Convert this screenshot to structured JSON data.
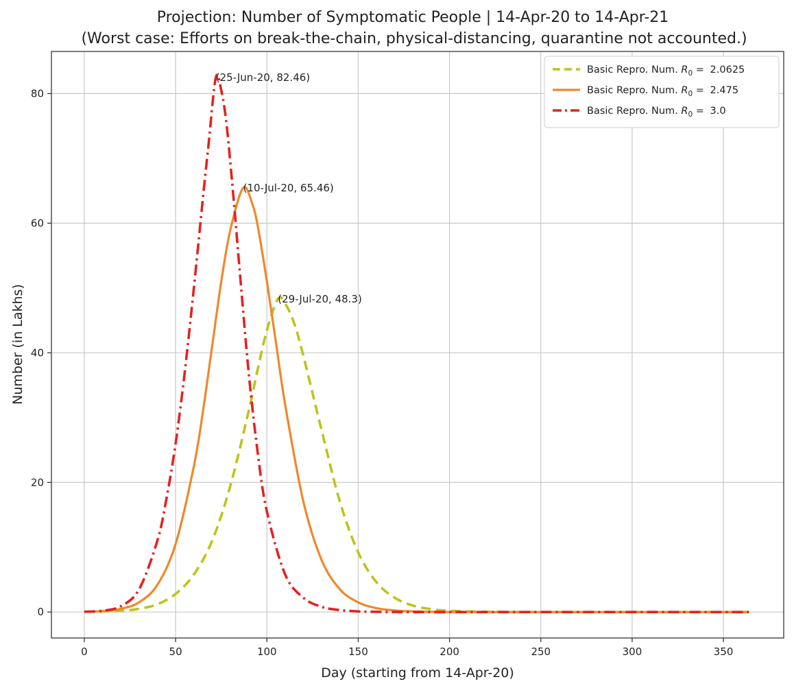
{
  "chart_data": {
    "type": "line",
    "title": "Projection: Number of Symptomatic People | 14-Apr-20 to 14-Apr-21",
    "subtitle": "(Worst case: Efforts on break-the-chain, physical-distancing, quarantine not accounted.)",
    "xlabel": "Day (starting from 14-Apr-20)",
    "ylabel": "Number (in Lakhs)",
    "xlim": [
      -18,
      383
    ],
    "ylim": [
      -4,
      86.5
    ],
    "xticks": [
      0,
      50,
      100,
      150,
      200,
      250,
      300,
      350
    ],
    "yticks": [
      0,
      20,
      40,
      60,
      80
    ],
    "grid": true,
    "legend_position": "top-right",
    "series": [
      {
        "name": "Basic Repro. Num. R0 = 2.0625",
        "legend_prefix": "Basic Repro. Num.",
        "legend_value": "2.0625",
        "color": "#bcc419",
        "style": "dashed",
        "x": [
          0,
          10,
          20,
          30,
          40,
          50,
          60,
          70,
          80,
          90,
          95,
          100,
          106,
          110,
          115,
          120,
          130,
          140,
          150,
          160,
          170,
          180,
          190,
          200,
          220,
          250,
          300,
          364
        ],
        "y": [
          0.05,
          0.1,
          0.2,
          0.5,
          1.2,
          2.8,
          5.8,
          11.0,
          19.5,
          31.0,
          37.5,
          43.5,
          48.3,
          47.6,
          44.5,
          39.5,
          28.0,
          17.0,
          9.2,
          4.6,
          2.2,
          1.0,
          0.45,
          0.2,
          0.05,
          0.0,
          0.0,
          0.0
        ]
      },
      {
        "name": "Basic Repro. Num. R0 = 2.475",
        "legend_prefix": "Basic Repro. Num.",
        "legend_value": "2.475",
        "color": "#f0872a",
        "style": "solid",
        "x": [
          0,
          10,
          20,
          30,
          40,
          50,
          60,
          65,
          70,
          75,
          80,
          87,
          92,
          95,
          100,
          105,
          110,
          120,
          130,
          140,
          150,
          160,
          170,
          180,
          200,
          250,
          300,
          364
        ],
        "y": [
          0.05,
          0.15,
          0.5,
          1.5,
          4.2,
          10.5,
          22.5,
          31.0,
          41.0,
          51.0,
          59.0,
          65.46,
          63.0,
          59.5,
          51.0,
          41.5,
          32.0,
          17.0,
          8.0,
          3.5,
          1.5,
          0.6,
          0.25,
          0.1,
          0.02,
          0.0,
          0.0,
          0.0
        ]
      },
      {
        "name": "Basic Repro. Num. R0 = 3.0",
        "legend_prefix": "Basic Repro. Num.",
        "legend_value": "3.0",
        "color": "#e3221f",
        "style": "dashdot",
        "x": [
          0,
          10,
          20,
          30,
          40,
          45,
          50,
          55,
          60,
          65,
          68,
          72,
          75,
          78,
          82,
          85,
          90,
          95,
          100,
          110,
          120,
          130,
          140,
          150,
          160,
          180,
          250,
          364
        ],
        "y": [
          0.05,
          0.2,
          0.9,
          3.5,
          11.0,
          17.5,
          26.0,
          37.0,
          50.0,
          64.0,
          72.0,
          82.46,
          80.5,
          75.0,
          63.0,
          53.0,
          37.0,
          24.5,
          15.5,
          5.8,
          2.2,
          0.8,
          0.3,
          0.1,
          0.04,
          0.0,
          0.0,
          0.0
        ]
      }
    ],
    "annotations": [
      {
        "text": "(25-Jun-20, 82.46)",
        "x": 72,
        "y": 82.46
      },
      {
        "text": "(10-Jul-20, 65.46)",
        "x": 87,
        "y": 65.46
      },
      {
        "text": "(29-Jul-20, 48.3)",
        "x": 106,
        "y": 48.3
      }
    ]
  }
}
